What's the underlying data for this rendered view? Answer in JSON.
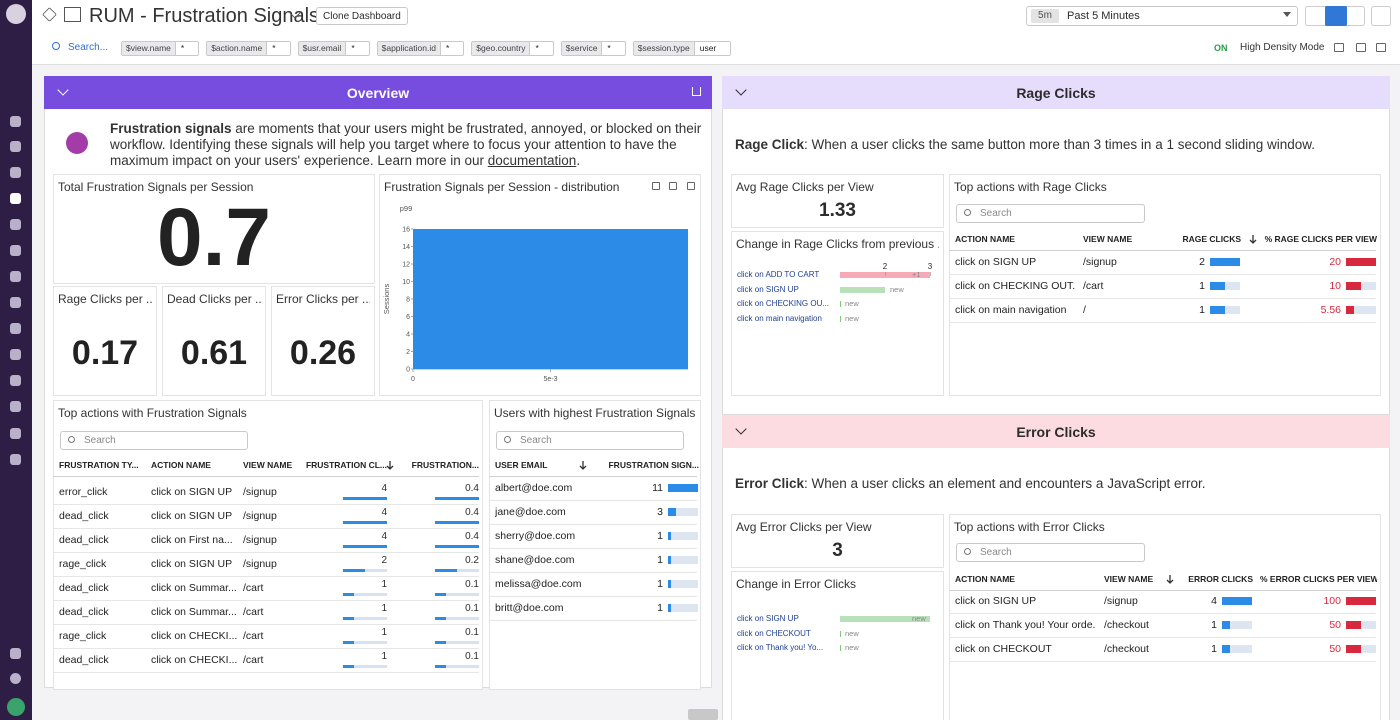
{
  "header": {
    "title": "RUM - Frustration Signals",
    "clone_button": "Clone Dashboard",
    "time_badge": "5m",
    "time_range": "Past 5 Minutes"
  },
  "filters": {
    "search": "Search...",
    "items": [
      {
        "name": "$view.name",
        "value": "*"
      },
      {
        "name": "$action.name",
        "value": "*"
      },
      {
        "name": "$usr.email",
        "value": "*"
      },
      {
        "name": "$application.id",
        "value": "*"
      },
      {
        "name": "$geo.country",
        "value": "*"
      },
      {
        "name": "$service",
        "value": "*"
      },
      {
        "name": "$session.type",
        "value": "user"
      }
    ],
    "toggle": "ON",
    "toggle_label": "High Density Mode"
  },
  "overview": {
    "title": "Overview",
    "intro": {
      "bold": "Frustration signals",
      "text": " are moments that your users might be frustrated, annoyed, or blocked on their workflow. Identifying these signals will help you target where to focus your attention to have the maximum impact on your users' experience. Learn more in our ",
      "link": "documentation",
      "end": "."
    },
    "total": {
      "title": "Total Frustration Signals per Session",
      "value": 0.7
    },
    "distribution": {
      "title": "Frustration Signals per Session - distribution",
      "chart": {
        "type": "histogram",
        "y_label": "Sessions",
        "marker": "p99",
        "bins": [
          0,
          0.01
        ],
        "values": [
          16
        ],
        "color": "#2b8be6",
        "xlim": [
          0,
          0.01
        ],
        "xticks": [
          {
            "value": 0,
            "label": "0"
          },
          {
            "value": 0.005,
            "label": "5e-3"
          }
        ],
        "ylim": [
          0,
          16
        ],
        "yticks": [
          0,
          2,
          4,
          6,
          8,
          10,
          12,
          14,
          16
        ]
      }
    },
    "small": [
      {
        "title": "Rage Clicks per ...",
        "value": 0.17
      },
      {
        "title": "Dead Clicks per ...",
        "value": 0.61
      },
      {
        "title": "Error Clicks per ...",
        "value": 0.26
      }
    ],
    "top_actions": {
      "title": "Top actions with Frustration Signals",
      "search": "Search",
      "sort_column": 4,
      "columns": [
        "FRUSTRATION TY...",
        "ACTION NAME",
        "VIEW NAME",
        "FRUSTRATION CL...",
        "FRUSTRATION..."
      ],
      "rows": [
        [
          "error_click",
          "click on SIGN UP",
          "/signup",
          4,
          0.4
        ],
        [
          "dead_click",
          "click on SIGN UP",
          "/signup",
          4,
          0.4
        ],
        [
          "dead_click",
          "click on First na...",
          "/signup",
          4,
          0.4
        ],
        [
          "rage_click",
          "click on SIGN UP",
          "/signup",
          2,
          0.2
        ],
        [
          "dead_click",
          "click on Summar...",
          "/cart",
          1,
          0.1
        ],
        [
          "dead_click",
          "click on Summar...",
          "/cart",
          1,
          0.1
        ],
        [
          "rage_click",
          "click on CHECKI...",
          "/cart",
          1,
          0.1
        ],
        [
          "dead_click",
          "click on CHECKI...",
          "/cart",
          1,
          0.1
        ]
      ]
    },
    "users": {
      "title": "Users with highest Frustration Signals",
      "search": "Search",
      "sort_column": 1,
      "columns": [
        "USER EMAIL",
        "FRUSTRATION SIGN..."
      ],
      "rows": [
        [
          "albert@doe.com",
          11
        ],
        [
          "jane@doe.com",
          3
        ],
        [
          "sherry@doe.com",
          1
        ],
        [
          "shane@doe.com",
          1
        ],
        [
          "melissa@doe.com",
          1
        ],
        [
          "britt@doe.com",
          1
        ]
      ]
    }
  },
  "rage": {
    "title": "Rage Clicks",
    "description": {
      "bold": "Rage Click",
      "text": ": When a user clicks the same button more than 3 times in a 1 second sliding window."
    },
    "avg": {
      "title": "Avg Rage Clicks per View",
      "value": 1.33
    },
    "change": {
      "title": "Change in Rage Clicks from previous ...",
      "xlim": [
        1,
        3
      ],
      "xticks": [
        2,
        3
      ],
      "rows": [
        {
          "label": "click on ADD TO CART",
          "value": 3,
          "note": "+1",
          "color": "#f0637a"
        },
        {
          "label": "click on SIGN UP",
          "value": 2,
          "note": "new",
          "color": "#7fc97f"
        },
        {
          "label": "click on CHECKING OU...",
          "value": 1,
          "note": "new",
          "color": "#7fc97f"
        },
        {
          "label": "click on main navigation",
          "value": 1,
          "note": "new",
          "color": "#7fc97f"
        }
      ]
    },
    "top": {
      "title": "Top actions with Rage Clicks",
      "search": "Search",
      "sort_column": 3,
      "columns": [
        "ACTION NAME",
        "VIEW NAME",
        "RAGE CLICKS",
        "% RAGE CLICKS PER VIEW"
      ],
      "rows": [
        [
          "click on SIGN UP",
          "/signup",
          2,
          20
        ],
        [
          "click on CHECKING OUT...",
          "/cart",
          1,
          10
        ],
        [
          "click on main navigation",
          "/",
          1,
          5.56
        ]
      ]
    }
  },
  "error": {
    "title": "Error Clicks",
    "description": {
      "bold": "Error Click",
      "text": ": When a user clicks an element and encounters a JavaScript error."
    },
    "avg": {
      "title": "Avg Error Clicks per View",
      "value": 3
    },
    "change": {
      "title": "Change in Error Clicks",
      "xlim": [
        1,
        2
      ],
      "rows": [
        {
          "label": "click on SIGN UP",
          "value": 2,
          "note": "new",
          "color": "#7fc97f"
        },
        {
          "label": "click on CHECKOUT",
          "value": 1,
          "note": "new",
          "color": "#7fc97f"
        },
        {
          "label": "click on Thank you! Yo...",
          "value": 1,
          "note": "new",
          "color": "#7fc97f"
        }
      ]
    },
    "top": {
      "title": "Top actions with Error Clicks",
      "search": "Search",
      "sort_column": 2,
      "columns": [
        "ACTION NAME",
        "VIEW NAME",
        "ERROR CLICKS",
        "% ERROR CLICKS PER VIEW"
      ],
      "rows": [
        [
          "click on SIGN UP",
          "/signup",
          4,
          100
        ],
        [
          "click on Thank you! Your orde...",
          "/checkout",
          1,
          50
        ],
        [
          "click on CHECKOUT",
          "/checkout",
          1,
          50
        ]
      ]
    }
  }
}
